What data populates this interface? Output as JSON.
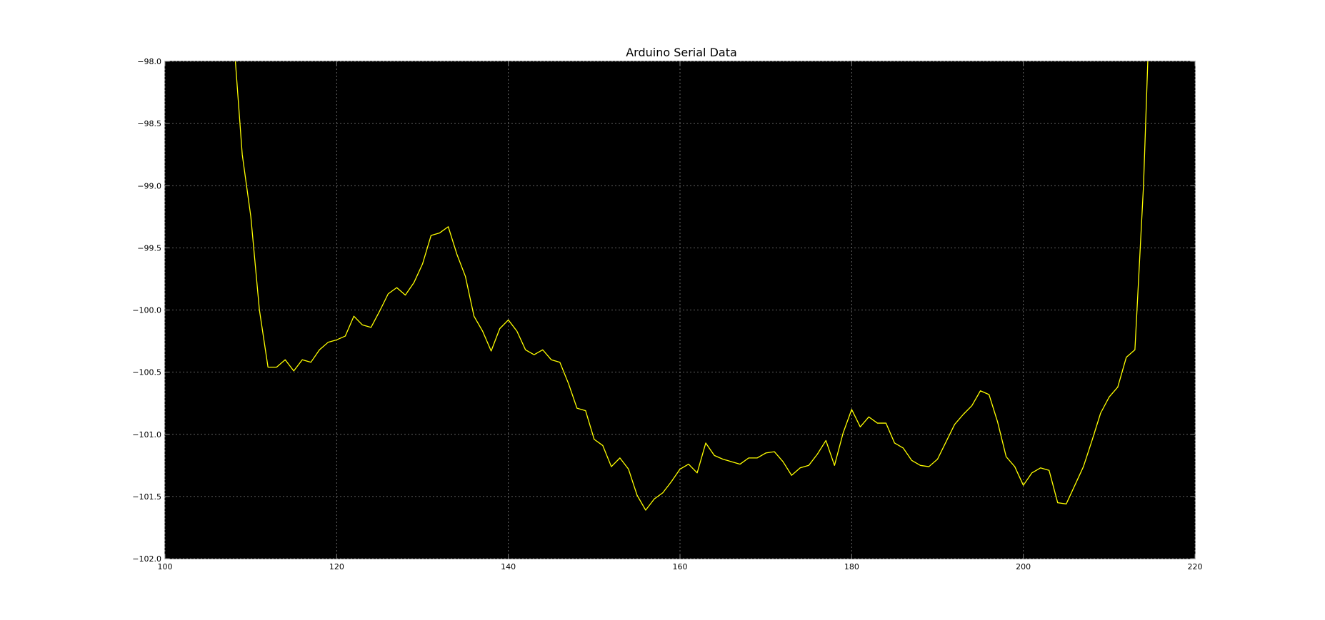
{
  "chart_data": {
    "type": "line",
    "title": "Arduino Serial Data",
    "xlabel": "",
    "ylabel": "",
    "xlim": [
      100,
      220
    ],
    "ylim": [
      -102.0,
      -98.0
    ],
    "x_ticks": [
      100,
      120,
      140,
      160,
      180,
      200,
      220
    ],
    "x_tick_labels": [
      "100",
      "120",
      "140",
      "160",
      "180",
      "200",
      "220"
    ],
    "y_ticks": [
      -98.0,
      -98.5,
      -99.0,
      -99.5,
      -100.0,
      -100.5,
      -101.0,
      -101.5,
      -102.0
    ],
    "y_tick_labels": [
      "−98.0",
      "−98.5",
      "−99.0",
      "−99.5",
      "−100.0",
      "−100.5",
      "−101.0",
      "−101.5",
      "−102.0"
    ],
    "grid": true,
    "legend": "none",
    "colors": {
      "plot_background": "#000000",
      "line": "#ffff00",
      "grid": "#808080",
      "text": "#000000"
    },
    "series": [
      {
        "x": [
          108.2,
          109,
          110,
          111,
          112,
          113,
          114,
          115,
          116,
          117,
          118,
          119,
          120,
          121,
          122,
          123,
          124,
          125,
          126,
          127,
          128,
          129,
          130,
          131,
          132,
          133,
          134,
          135,
          136,
          137,
          138,
          139,
          140,
          141,
          142,
          143,
          144,
          145,
          146,
          147,
          148,
          149,
          150,
          151,
          152,
          153,
          154,
          155,
          156,
          157,
          158,
          159,
          160,
          161,
          162,
          163,
          164,
          165,
          166,
          167,
          168,
          169,
          170,
          171,
          172,
          173,
          174,
          175,
          176,
          177,
          178,
          179,
          180,
          181,
          182,
          183,
          184,
          185,
          186,
          187,
          188,
          189,
          190,
          191,
          192,
          193,
          194,
          195,
          196,
          197,
          198,
          199,
          200,
          201,
          202,
          203,
          204,
          205,
          206,
          207,
          208,
          209,
          210,
          211,
          212,
          213,
          214,
          214.5
        ],
        "values": [
          -98.0,
          -98.75,
          -99.25,
          -100.0,
          -100.46,
          -100.46,
          -100.4,
          -100.49,
          -100.4,
          -100.42,
          -100.32,
          -100.26,
          -100.24,
          -100.21,
          -100.05,
          -100.12,
          -100.14,
          -100.01,
          -99.87,
          -99.82,
          -99.88,
          -99.78,
          -99.63,
          -99.4,
          -99.38,
          -99.33,
          -99.55,
          -99.73,
          -100.05,
          -100.17,
          -100.33,
          -100.15,
          -100.08,
          -100.17,
          -100.32,
          -100.36,
          -100.32,
          -100.4,
          -100.42,
          -100.59,
          -100.79,
          -100.81,
          -101.04,
          -101.09,
          -101.26,
          -101.19,
          -101.28,
          -101.49,
          -101.61,
          -101.52,
          -101.47,
          -101.38,
          -101.28,
          -101.24,
          -101.31,
          -101.07,
          -101.17,
          -101.2,
          -101.22,
          -101.24,
          -101.19,
          -101.19,
          -101.15,
          -101.14,
          -101.22,
          -101.33,
          -101.27,
          -101.25,
          -101.16,
          -101.05,
          -101.25,
          -100.99,
          -100.8,
          -100.94,
          -100.86,
          -100.91,
          -100.91,
          -101.07,
          -101.11,
          -101.21,
          -101.25,
          -101.26,
          -101.2,
          -101.06,
          -100.92,
          -100.84,
          -100.77,
          -100.65,
          -100.68,
          -100.9,
          -101.18,
          -101.26,
          -101.41,
          -101.31,
          -101.27,
          -101.29,
          -101.55,
          -101.56,
          -101.41,
          -101.26,
          -101.05,
          -100.83,
          -100.7,
          -100.62,
          -100.38,
          -100.32,
          -99.0,
          -98.0
        ]
      }
    ]
  }
}
